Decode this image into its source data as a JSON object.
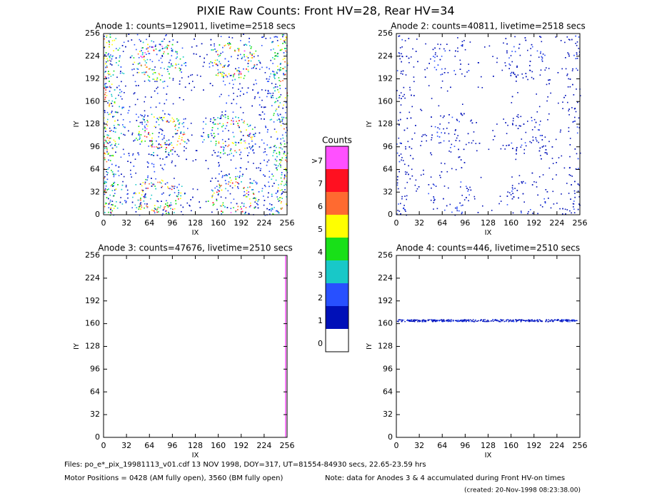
{
  "title": "PIXIE Raw Counts:  Front HV=28, Rear HV=34",
  "panels": [
    {
      "title": "Anode 1: counts=129011, livetime=2518 secs",
      "xlabel": "IX",
      "ylabel": "IY",
      "xlim": [
        0,
        256
      ],
      "ylim": [
        0,
        256
      ],
      "xticks": [
        0,
        32,
        64,
        96,
        128,
        160,
        192,
        224,
        256
      ],
      "yticks": [
        0,
        32,
        64,
        96,
        128,
        160,
        192,
        224,
        256
      ]
    },
    {
      "title": "Anode 2: counts=40811, livetime=2518 secs",
      "xlabel": "IX",
      "ylabel": "IY",
      "xlim": [
        0,
        256
      ],
      "ylim": [
        0,
        256
      ],
      "xticks": [
        0,
        32,
        64,
        96,
        128,
        160,
        192,
        224,
        256
      ],
      "yticks": [
        0,
        32,
        64,
        96,
        128,
        160,
        192,
        224,
        256
      ]
    },
    {
      "title": "Anode 3: counts=47676, livetime=2510 secs",
      "xlabel": "IX",
      "ylabel": "IY",
      "xlim": [
        0,
        256
      ],
      "ylim": [
        0,
        256
      ],
      "xticks": [
        0,
        32,
        64,
        96,
        128,
        160,
        192,
        224,
        256
      ],
      "yticks": [
        0,
        32,
        64,
        96,
        128,
        160,
        192,
        224,
        256
      ]
    },
    {
      "title": "Anode 4: counts=446, livetime=2510 secs",
      "xlabel": "IX",
      "ylabel": "IY",
      "xlim": [
        0,
        256
      ],
      "ylim": [
        0,
        256
      ],
      "xticks": [
        0,
        32,
        64,
        96,
        128,
        160,
        192,
        224,
        256
      ],
      "yticks": [
        0,
        32,
        64,
        96,
        128,
        160,
        192,
        224,
        256
      ]
    }
  ],
  "colorbar": {
    "title": "Counts",
    "labels": [
      "0",
      "1",
      "2",
      "3",
      "4",
      "5",
      "6",
      "7",
      ">7"
    ],
    "colors": [
      "#ffffff",
      "#0010b8",
      "#2850ff",
      "#18c8c8",
      "#18e018",
      "#ffff00",
      "#ff6a30",
      "#ff1020",
      "#ff50ff"
    ]
  },
  "footer": {
    "files": "Files: po_e*_pix_19981113_v01.cdf    13 NOV 1998, DOY=317, UT=81554-84930 secs, 22.65-23.59 hrs",
    "motor": "Motor Positions = 0428 (AM fully open), 3560 (BM fully open)",
    "note": "Note: data for Anodes 3 & 4 accumulated during Front HV-on times",
    "created": "(created: 20-Nov-1998 08:23:38.00)"
  }
}
